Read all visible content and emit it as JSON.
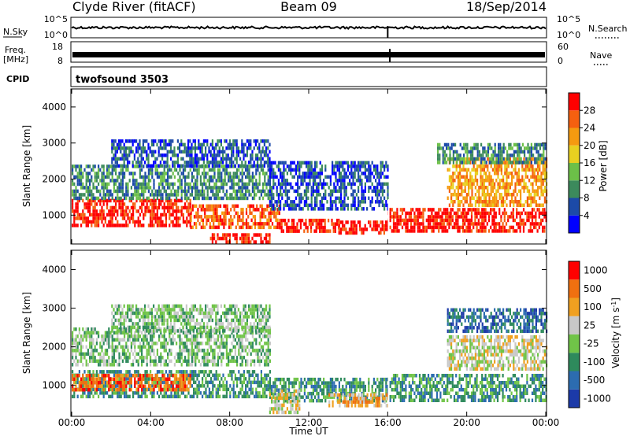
{
  "header": {
    "station": "Clyde River (fitACF)",
    "beam": "Beam 09",
    "date": "18/Sep/2014"
  },
  "strips": {
    "nsky_label": "N.Sky",
    "nsky_ticks": [
      "10^5",
      "10^0"
    ],
    "nsearch_label": "N.Search",
    "nsearch_ticks": [
      "10^5",
      "10^0"
    ],
    "freq_label": "Freq.",
    "freq_unit": "[MHz]",
    "freq_ticks": [
      "18",
      "8"
    ],
    "nave_label": "Nave",
    "nave_ticks": [
      "60",
      "0"
    ],
    "cpid_label": "CPID",
    "cpid_value": "twofsound 3503"
  },
  "x_axis": {
    "title": "Time UT",
    "ticks": [
      "00:00",
      "04:00",
      "08:00",
      "12:00",
      "16:00",
      "20:00",
      "00:00"
    ]
  },
  "chart_data": [
    {
      "type": "heatmap",
      "panel": "power",
      "xlabel": "Time UT",
      "ylabel": "Slant Range [km]",
      "x_ticks": [
        "00:00",
        "04:00",
        "08:00",
        "12:00",
        "16:00",
        "20:00",
        "00:00"
      ],
      "y_ticks": [
        1000,
        2000,
        3000,
        4000
      ],
      "ylim": [
        200,
        4500
      ],
      "colorbar": {
        "label": "Power [dB]",
        "ticks": [
          4,
          8,
          12,
          16,
          20,
          24,
          28
        ],
        "colors": [
          "#0000ff",
          "#1c4aa8",
          "#3c8a5c",
          "#6cc048",
          "#e8d020",
          "#f59a10",
          "#f56010",
          "#ff0000"
        ]
      },
      "regions": [
        {
          "t0": 0.0,
          "t1": 6.0,
          "r0": 700,
          "r1": 1450,
          "level": 7
        },
        {
          "t0": 6.0,
          "t1": 10.5,
          "r0": 700,
          "r1": 1300,
          "level": 6
        },
        {
          "t0": 10.5,
          "t1": 13.5,
          "r0": 600,
          "r1": 900,
          "level": 7
        },
        {
          "t0": 13.5,
          "t1": 16.0,
          "r0": 550,
          "r1": 850,
          "level": 7
        },
        {
          "t0": 16.0,
          "t1": 24.0,
          "r0": 600,
          "r1": 1200,
          "level": 7
        },
        {
          "t0": 0.0,
          "t1": 10.0,
          "r0": 1500,
          "r1": 2400,
          "level": 2
        },
        {
          "t0": 10.0,
          "t1": 16.0,
          "r0": 1200,
          "r1": 2500,
          "level": 1
        },
        {
          "t0": 19.0,
          "t1": 24.0,
          "r0": 1300,
          "r1": 2600,
          "level": 5
        },
        {
          "t0": 2.0,
          "t1": 10.0,
          "r0": 2400,
          "r1": 3100,
          "level": 1
        },
        {
          "t0": 18.5,
          "t1": 24.0,
          "r0": 2500,
          "r1": 3000,
          "level": 2
        },
        {
          "t0": 7.0,
          "t1": 10.0,
          "r0": 250,
          "r1": 500,
          "level": 7
        }
      ]
    },
    {
      "type": "heatmap",
      "panel": "velocity",
      "xlabel": "Time UT",
      "ylabel": "Slant Range [km]",
      "x_ticks": [
        "00:00",
        "04:00",
        "08:00",
        "12:00",
        "16:00",
        "20:00",
        "00:00"
      ],
      "y_ticks": [
        1000,
        2000,
        3000,
        4000
      ],
      "ylim": [
        200,
        4500
      ],
      "colorbar": {
        "label": "Velocity [m s^-1]",
        "ticks": [
          1000,
          500,
          100,
          25,
          -25,
          -100,
          -500,
          -1000
        ],
        "colors": [
          "#1c3aa8",
          "#2c6cb0",
          "#2e8a5c",
          "#70c448",
          "#c8c8c8",
          "#f0a020",
          "#f07010",
          "#ff0000"
        ]
      },
      "regions": [
        {
          "t0": 0.0,
          "t1": 10.0,
          "r0": 700,
          "r1": 1400,
          "level": 2
        },
        {
          "t0": 10.0,
          "t1": 16.0,
          "r0": 600,
          "r1": 1200,
          "level": 2
        },
        {
          "t0": 13.0,
          "t1": 16.0,
          "r0": 500,
          "r1": 800,
          "level": 5
        },
        {
          "t0": 0.0,
          "t1": 6.0,
          "r0": 900,
          "r1": 1300,
          "level": 6
        },
        {
          "t0": 16.0,
          "t1": 24.0,
          "r0": 600,
          "r1": 1300,
          "level": 2
        },
        {
          "t0": 19.0,
          "t1": 24.0,
          "r0": 1400,
          "r1": 2300,
          "level": 4
        },
        {
          "t0": 0.0,
          "t1": 10.0,
          "r0": 1500,
          "r1": 2500,
          "level": 3
        },
        {
          "t0": 2.0,
          "t1": 10.0,
          "r0": 2400,
          "r1": 3100,
          "level": 3
        },
        {
          "t0": 19.0,
          "t1": 24.0,
          "r0": 2400,
          "r1": 3000,
          "level": 1
        },
        {
          "t0": 10.0,
          "t1": 11.5,
          "r0": 300,
          "r1": 900,
          "level": 4
        }
      ]
    }
  ]
}
